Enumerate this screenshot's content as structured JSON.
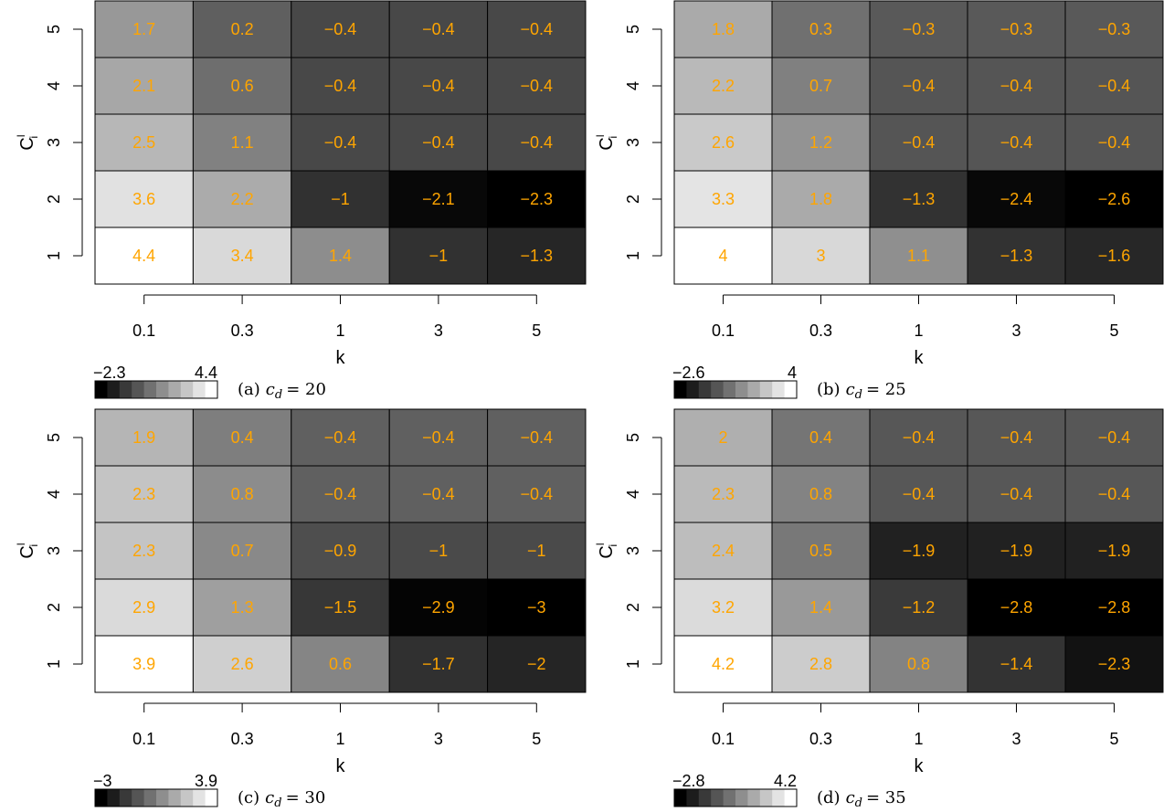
{
  "figure": {
    "colors": {
      "value_label": "#FFA500",
      "cell_border": "#000000",
      "low": "#000000",
      "high": "#FFFFFF"
    }
  },
  "chart_data": [
    {
      "type": "heatmap",
      "caption": "(a)",
      "caption_param": "c_d = 20",
      "xlabel": "k",
      "ylabel": "C",
      "ylabel_sup": "l",
      "ylabel_sub": "i",
      "x_categories": [
        "0.1",
        "0.3",
        "1",
        "3",
        "5"
      ],
      "y_categories": [
        "1",
        "2",
        "3",
        "4",
        "5"
      ],
      "values": [
        [
          1.7,
          0.2,
          -0.4,
          -0.4,
          -0.4
        ],
        [
          2.1,
          0.6,
          -0.4,
          -0.4,
          -0.4
        ],
        [
          2.5,
          1.1,
          -0.4,
          -0.4,
          -0.4
        ],
        [
          3.6,
          2.2,
          -1,
          -2.1,
          -2.3
        ],
        [
          4.4,
          3.4,
          1.4,
          -1,
          -1.3
        ]
      ],
      "value_labels": [
        [
          "1.7",
          "0.2",
          "−0.4",
          "−0.4",
          "−0.4"
        ],
        [
          "2.1",
          "0.6",
          "−0.4",
          "−0.4",
          "−0.4"
        ],
        [
          "2.5",
          "1.1",
          "−0.4",
          "−0.4",
          "−0.4"
        ],
        [
          "3.6",
          "2.2",
          "−1",
          "−2.1",
          "−2.3"
        ],
        [
          "4.4",
          "3.4",
          "1.4",
          "−1",
          "−1.3"
        ]
      ],
      "scale": {
        "min": -2.3,
        "max": 4.4,
        "min_label": "−2.3",
        "max_label": "4.4",
        "colormap": "grayscale"
      }
    },
    {
      "type": "heatmap",
      "caption": "(b)",
      "caption_param": "c_d = 25",
      "xlabel": "k",
      "ylabel": "C",
      "ylabel_sup": "l",
      "ylabel_sub": "i",
      "x_categories": [
        "0.1",
        "0.3",
        "1",
        "3",
        "5"
      ],
      "y_categories": [
        "1",
        "2",
        "3",
        "4",
        "5"
      ],
      "values": [
        [
          1.8,
          0.3,
          -0.3,
          -0.3,
          -0.3
        ],
        [
          2.2,
          0.7,
          -0.4,
          -0.4,
          -0.4
        ],
        [
          2.6,
          1.2,
          -0.4,
          -0.4,
          -0.4
        ],
        [
          3.3,
          1.8,
          -1.3,
          -2.4,
          -2.6
        ],
        [
          4,
          3,
          1.1,
          -1.3,
          -1.6
        ]
      ],
      "value_labels": [
        [
          "1.8",
          "0.3",
          "−0.3",
          "−0.3",
          "−0.3"
        ],
        [
          "2.2",
          "0.7",
          "−0.4",
          "−0.4",
          "−0.4"
        ],
        [
          "2.6",
          "1.2",
          "−0.4",
          "−0.4",
          "−0.4"
        ],
        [
          "3.3",
          "1.8",
          "−1.3",
          "−2.4",
          "−2.6"
        ],
        [
          "4",
          "3",
          "1.1",
          "−1.3",
          "−1.6"
        ]
      ],
      "scale": {
        "min": -2.6,
        "max": 4,
        "min_label": "−2.6",
        "max_label": "4",
        "colormap": "grayscale"
      }
    },
    {
      "type": "heatmap",
      "caption": "(c)",
      "caption_param": "c_d = 30",
      "xlabel": "k",
      "ylabel": "C",
      "ylabel_sup": "l",
      "ylabel_sub": "i",
      "x_categories": [
        "0.1",
        "0.3",
        "1",
        "3",
        "5"
      ],
      "y_categories": [
        "1",
        "2",
        "3",
        "4",
        "5"
      ],
      "values": [
        [
          1.9,
          0.4,
          -0.4,
          -0.4,
          -0.4
        ],
        [
          2.3,
          0.8,
          -0.4,
          -0.4,
          -0.4
        ],
        [
          2.3,
          0.7,
          -0.9,
          -1,
          -1
        ],
        [
          2.9,
          1.3,
          -1.5,
          -2.9,
          -3
        ],
        [
          3.9,
          2.6,
          0.6,
          -1.7,
          -2
        ]
      ],
      "value_labels": [
        [
          "1.9",
          "0.4",
          "−0.4",
          "−0.4",
          "−0.4"
        ],
        [
          "2.3",
          "0.8",
          "−0.4",
          "−0.4",
          "−0.4"
        ],
        [
          "2.3",
          "0.7",
          "−0.9",
          "−1",
          "−1"
        ],
        [
          "2.9",
          "1.3",
          "−1.5",
          "−2.9",
          "−3"
        ],
        [
          "3.9",
          "2.6",
          "0.6",
          "−1.7",
          "−2"
        ]
      ],
      "scale": {
        "min": -3,
        "max": 3.9,
        "min_label": "−3",
        "max_label": "3.9",
        "colormap": "grayscale"
      }
    },
    {
      "type": "heatmap",
      "caption": "(d)",
      "caption_param": "c_d = 35",
      "xlabel": "k",
      "ylabel": "C",
      "ylabel_sup": "l",
      "ylabel_sub": "i",
      "x_categories": [
        "0.1",
        "0.3",
        "1",
        "3",
        "5"
      ],
      "y_categories": [
        "1",
        "2",
        "3",
        "4",
        "5"
      ],
      "values": [
        [
          2,
          0.4,
          -0.4,
          -0.4,
          -0.4
        ],
        [
          2.3,
          0.8,
          -0.4,
          -0.4,
          -0.4
        ],
        [
          2.4,
          0.5,
          -1.9,
          -1.9,
          -1.9
        ],
        [
          3.2,
          1.4,
          -1.2,
          -2.8,
          -2.8
        ],
        [
          4.2,
          2.8,
          0.8,
          -1.4,
          -2.3
        ]
      ],
      "value_labels": [
        [
          "2",
          "0.4",
          "−0.4",
          "−0.4",
          "−0.4"
        ],
        [
          "2.3",
          "0.8",
          "−0.4",
          "−0.4",
          "−0.4"
        ],
        [
          "2.4",
          "0.5",
          "−1.9",
          "−1.9",
          "−1.9"
        ],
        [
          "3.2",
          "1.4",
          "−1.2",
          "−2.8",
          "−2.8"
        ],
        [
          "4.2",
          "2.8",
          "0.8",
          "−1.4",
          "−2.3"
        ]
      ],
      "scale": {
        "min": -2.8,
        "max": 4.2,
        "min_label": "−2.8",
        "max_label": "4.2",
        "colormap": "grayscale"
      }
    }
  ]
}
